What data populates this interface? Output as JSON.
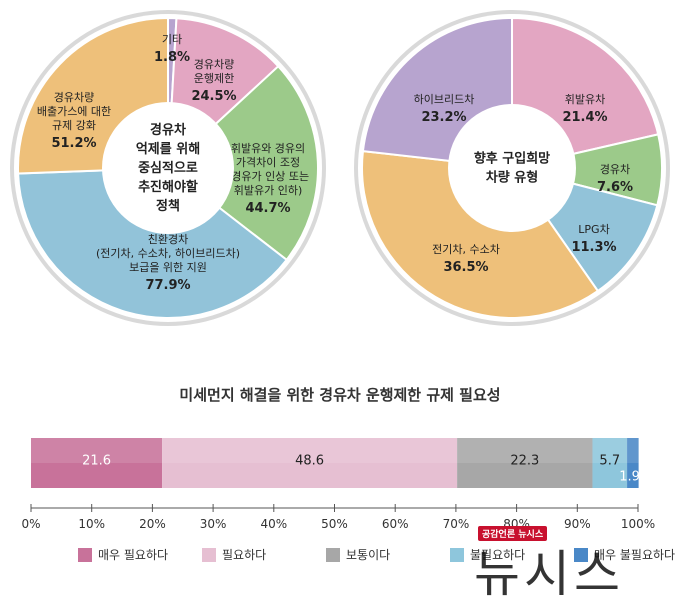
{
  "chart_data": [
    {
      "type": "pie",
      "title": "",
      "center_label": [
        "경유차",
        "억제를 위해",
        "중심적으로",
        "추진해야할",
        "정책"
      ],
      "slices": [
        {
          "label": [
            "기타"
          ],
          "value": 1.8,
          "value_text": "1.8%",
          "color": "#b7a4cf"
        },
        {
          "label": [
            "경유차량",
            "운행제한"
          ],
          "value": 24.5,
          "value_text": "24.5%",
          "color": "#e3a6c2"
        },
        {
          "label": [
            "휘발유와 경유의",
            "가격차이 조정",
            "(경유가 인상 또는",
            "휘발유가 인하)"
          ],
          "value": 44.7,
          "value_text": "44.7%",
          "color": "#9cca8a"
        },
        {
          "label": [
            "친환경차",
            "(전기차, 수소차, 하이브리드차)",
            "보급을 위한 지원"
          ],
          "value": 77.9,
          "value_text": "77.9%",
          "color": "#92c3d9"
        },
        {
          "label": [
            "경유차량",
            "배출가스에 대한",
            "규제 강화"
          ],
          "value": 51.2,
          "value_text": "51.2%",
          "color": "#eec07a"
        }
      ]
    },
    {
      "type": "pie",
      "title": "",
      "center_label": [
        "향후 구입희망",
        "차량 유형"
      ],
      "slices": [
        {
          "label": [
            "휘발유차"
          ],
          "value": 21.4,
          "value_text": "21.4%",
          "color": "#e3a6c2"
        },
        {
          "label": [
            "경유차"
          ],
          "value": 7.6,
          "value_text": "7.6%",
          "color": "#9cca8a"
        },
        {
          "label": [
            "LPG차"
          ],
          "value": 11.3,
          "value_text": "11.3%",
          "color": "#92c3d9"
        },
        {
          "label": [
            "전기차, 수소차"
          ],
          "value": 36.5,
          "value_text": "36.5%",
          "color": "#eec07a"
        },
        {
          "label": [
            "하이브리드차"
          ],
          "value": 23.2,
          "value_text": "23.2%",
          "color": "#b7a4cf"
        }
      ]
    },
    {
      "type": "bar",
      "orientation": "horizontal-stacked",
      "title": "미세먼지 해결을 위한 경유차 운행제한 규제 필요성",
      "xlim": [
        0,
        100
      ],
      "x_ticks": [
        "0%",
        "10%",
        "20%",
        "30%",
        "40%",
        "50%",
        "60%",
        "70%",
        "80%",
        "90%",
        "100%"
      ],
      "series": [
        {
          "name": "매우 필요하다",
          "value": 21.6,
          "color": "#c8729a"
        },
        {
          "name": "필요하다",
          "value": 48.6,
          "color": "#e6bfd2"
        },
        {
          "name": "보통이다",
          "value": 22.3,
          "color": "#a7a7a7"
        },
        {
          "name": "불필요하다",
          "value": 5.7,
          "color": "#8ec6dc"
        },
        {
          "name": "매우 불필요하다",
          "value": 1.9,
          "color": "#4a88c7"
        }
      ],
      "legend_position": "bottom"
    }
  ],
  "watermark": {
    "tag": "공감언론 뉴시스",
    "logo": "뉴시스"
  }
}
